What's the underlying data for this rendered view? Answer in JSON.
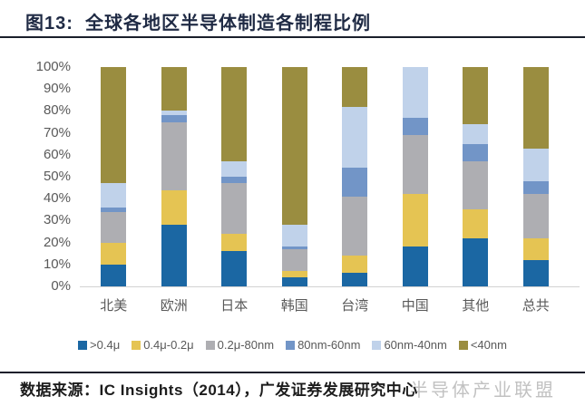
{
  "header": {
    "title": "图13:  全球各地区半导体制造各制程比例"
  },
  "footer": {
    "source": "数据来源：IC Insights（2014），广发证券发展研究中心",
    "watermark": "半导体产业联盟"
  },
  "chart_data": {
    "type": "bar",
    "stacked": true,
    "title": "全球各地区半导体制造各制程比例",
    "categories": [
      "北美",
      "欧洲",
      "日本",
      "韩国",
      "台湾",
      "中国",
      "其他",
      "总共"
    ],
    "series": [
      {
        "name": ">0.4μ",
        "color": "#1b67a3",
        "values": [
          10,
          28,
          16,
          4,
          6,
          18,
          22,
          12
        ]
      },
      {
        "name": "0.4μ-0.2μ",
        "color": "#e5c453",
        "values": [
          10,
          16,
          8,
          3,
          8,
          24,
          13,
          10
        ]
      },
      {
        "name": "0.2μ-80nm",
        "color": "#aeaeb2",
        "values": [
          14,
          31,
          23,
          10,
          27,
          27,
          22,
          20
        ]
      },
      {
        "name": "80nm-60nm",
        "color": "#7295c7",
        "values": [
          2,
          3,
          3,
          1,
          13,
          8,
          8,
          6
        ]
      },
      {
        "name": "60nm-40nm",
        "color": "#c0d2ea",
        "values": [
          11,
          2,
          7,
          10,
          28,
          23,
          9,
          15
        ]
      },
      {
        "name": "<40nm",
        "color": "#9a8d40",
        "values": [
          53,
          20,
          43,
          72,
          18,
          0,
          26,
          37
        ]
      }
    ],
    "y_ticks": [
      "100%",
      "90%",
      "80%",
      "70%",
      "60%",
      "50%",
      "40%",
      "30%",
      "20%",
      "10%",
      "0%"
    ],
    "ylim": [
      0,
      100
    ],
    "grid": false,
    "legend_position": "bottom"
  }
}
